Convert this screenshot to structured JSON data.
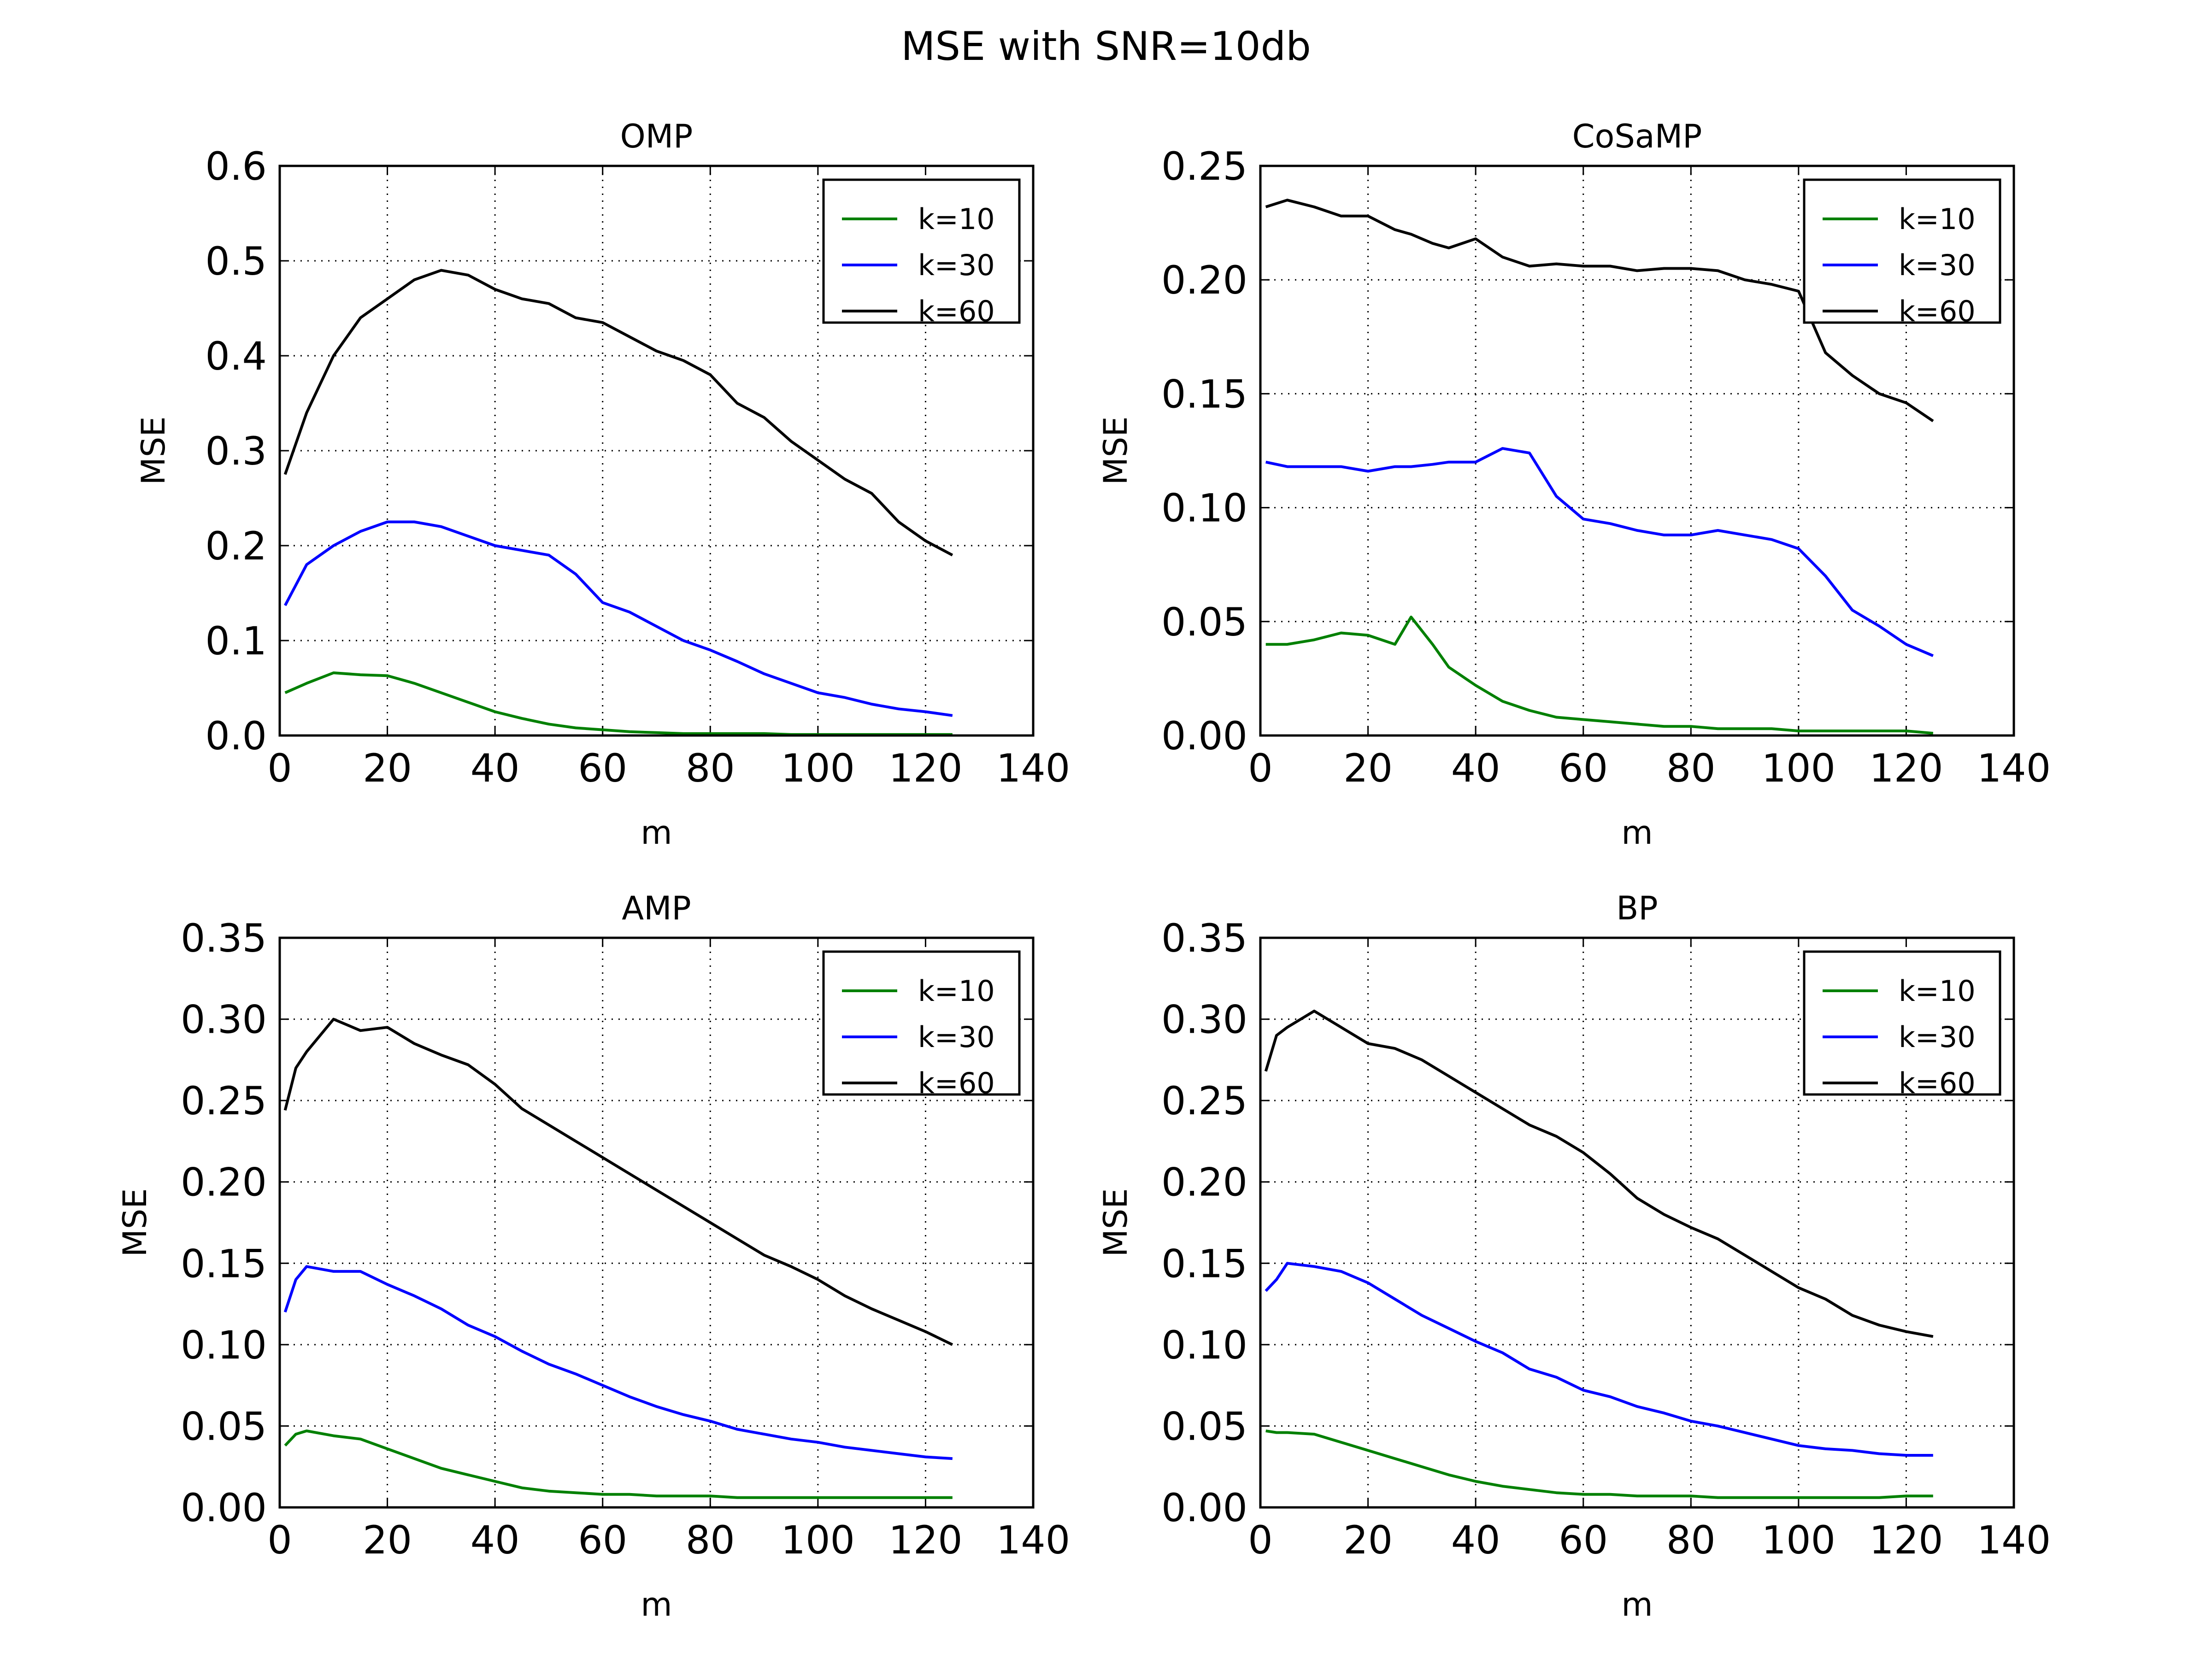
{
  "figure": {
    "title": "MSE with SNR=10db"
  },
  "colors": {
    "k=10": "#008000",
    "k=30": "#0000ff",
    "k=60": "#000000"
  },
  "chart_data": [
    {
      "type": "line",
      "title": "OMP",
      "xlabel": "m",
      "ylabel": "MSE",
      "xlim": [
        0,
        140
      ],
      "ylim": [
        0,
        0.6
      ],
      "xticks": [
        "0",
        "20",
        "40",
        "60",
        "80",
        "100",
        "120",
        "140"
      ],
      "yticks": [
        "0.0",
        "0.1",
        "0.2",
        "0.3",
        "0.4",
        "0.5",
        "0.6"
      ],
      "grid": true,
      "legend_position": "top-right",
      "x": [
        1,
        5,
        10,
        15,
        20,
        25,
        30,
        35,
        40,
        45,
        50,
        55,
        60,
        65,
        70,
        75,
        80,
        85,
        90,
        95,
        100,
        105,
        110,
        115,
        120,
        125
      ],
      "series": [
        {
          "name": "k=10",
          "color": "#008000",
          "values": [
            0.045,
            0.055,
            0.066,
            0.064,
            0.063,
            0.055,
            0.045,
            0.035,
            0.025,
            0.018,
            0.012,
            0.008,
            0.006,
            0.004,
            0.003,
            0.002,
            0.002,
            0.002,
            0.002,
            0.001,
            0.001,
            0.001,
            0.001,
            0.001,
            0.001,
            0.001
          ]
        },
        {
          "name": "k=30",
          "color": "#0000ff",
          "values": [
            0.137,
            0.18,
            0.2,
            0.215,
            0.225,
            0.225,
            0.22,
            0.21,
            0.2,
            0.195,
            0.19,
            0.17,
            0.14,
            0.13,
            0.115,
            0.1,
            0.09,
            0.078,
            0.065,
            0.055,
            0.045,
            0.04,
            0.033,
            0.028,
            0.025,
            0.021
          ]
        },
        {
          "name": "k=60",
          "color": "#000000",
          "values": [
            0.275,
            0.34,
            0.4,
            0.44,
            0.46,
            0.48,
            0.49,
            0.485,
            0.47,
            0.46,
            0.455,
            0.44,
            0.435,
            0.42,
            0.405,
            0.395,
            0.38,
            0.35,
            0.335,
            0.31,
            0.29,
            0.27,
            0.255,
            0.225,
            0.205,
            0.19
          ]
        }
      ]
    },
    {
      "type": "line",
      "title": "CoSaMP",
      "xlabel": "m",
      "ylabel": "MSE",
      "xlim": [
        0,
        140
      ],
      "ylim": [
        0,
        0.25
      ],
      "xticks": [
        "0",
        "20",
        "40",
        "60",
        "80",
        "100",
        "120",
        "140"
      ],
      "yticks": [
        "0.00",
        "0.05",
        "0.10",
        "0.15",
        "0.20",
        "0.25"
      ],
      "grid": true,
      "legend_position": "top-right",
      "x": [
        1,
        5,
        10,
        15,
        20,
        25,
        28,
        32,
        35,
        40,
        45,
        50,
        55,
        60,
        65,
        70,
        75,
        80,
        85,
        90,
        95,
        100,
        105,
        110,
        115,
        120,
        125
      ],
      "series": [
        {
          "name": "k=10",
          "color": "#008000",
          "values": [
            0.04,
            0.04,
            0.042,
            0.045,
            0.044,
            0.04,
            0.052,
            0.04,
            0.03,
            0.022,
            0.015,
            0.011,
            0.008,
            0.007,
            0.006,
            0.005,
            0.004,
            0.004,
            0.003,
            0.003,
            0.003,
            0.002,
            0.002,
            0.002,
            0.002,
            0.002,
            0.001
          ]
        },
        {
          "name": "k=30",
          "color": "#0000ff",
          "values": [
            0.12,
            0.118,
            0.118,
            0.118,
            0.116,
            0.118,
            0.118,
            0.119,
            0.12,
            0.12,
            0.126,
            0.124,
            0.105,
            0.095,
            0.093,
            0.09,
            0.088,
            0.088,
            0.09,
            0.088,
            0.086,
            0.082,
            0.07,
            0.055,
            0.048,
            0.04,
            0.035
          ]
        },
        {
          "name": "k=60",
          "color": "#000000",
          "values": [
            0.232,
            0.235,
            0.232,
            0.228,
            0.228,
            0.222,
            0.22,
            0.216,
            0.214,
            0.218,
            0.21,
            0.206,
            0.207,
            0.206,
            0.206,
            0.204,
            0.205,
            0.205,
            0.204,
            0.2,
            0.198,
            0.195,
            0.168,
            0.158,
            0.15,
            0.146,
            0.138
          ]
        }
      ]
    },
    {
      "type": "line",
      "title": "AMP",
      "xlabel": "m",
      "ylabel": "MSE",
      "xlim": [
        0,
        140
      ],
      "ylim": [
        0,
        0.35
      ],
      "xticks": [
        "0",
        "20",
        "40",
        "60",
        "80",
        "100",
        "120",
        "140"
      ],
      "yticks": [
        "0.00",
        "0.05",
        "0.10",
        "0.15",
        "0.20",
        "0.25",
        "0.30",
        "0.35"
      ],
      "grid": true,
      "legend_position": "top-right",
      "x": [
        1,
        3,
        5,
        10,
        15,
        20,
        25,
        30,
        35,
        40,
        45,
        50,
        55,
        60,
        65,
        70,
        75,
        80,
        85,
        90,
        95,
        100,
        105,
        110,
        115,
        120,
        125
      ],
      "series": [
        {
          "name": "k=10",
          "color": "#008000",
          "values": [
            0.038,
            0.045,
            0.047,
            0.044,
            0.042,
            0.036,
            0.03,
            0.024,
            0.02,
            0.016,
            0.012,
            0.01,
            0.009,
            0.008,
            0.008,
            0.007,
            0.007,
            0.007,
            0.006,
            0.006,
            0.006,
            0.006,
            0.006,
            0.006,
            0.006,
            0.006,
            0.006
          ]
        },
        {
          "name": "k=30",
          "color": "#0000ff",
          "values": [
            0.12,
            0.14,
            0.148,
            0.145,
            0.145,
            0.137,
            0.13,
            0.122,
            0.112,
            0.105,
            0.096,
            0.088,
            0.082,
            0.075,
            0.068,
            0.062,
            0.057,
            0.053,
            0.048,
            0.045,
            0.042,
            0.04,
            0.037,
            0.035,
            0.033,
            0.031,
            0.03
          ]
        },
        {
          "name": "k=60",
          "color": "#000000",
          "values": [
            0.244,
            0.27,
            0.28,
            0.3,
            0.293,
            0.295,
            0.285,
            0.278,
            0.272,
            0.26,
            0.245,
            0.235,
            0.225,
            0.215,
            0.205,
            0.195,
            0.185,
            0.175,
            0.165,
            0.155,
            0.148,
            0.14,
            0.13,
            0.122,
            0.115,
            0.108,
            0.1
          ]
        }
      ]
    },
    {
      "type": "line",
      "title": "BP",
      "xlabel": "m",
      "ylabel": "MSE",
      "xlim": [
        0,
        140
      ],
      "ylim": [
        0,
        0.35
      ],
      "xticks": [
        "0",
        "20",
        "40",
        "60",
        "80",
        "100",
        "120",
        "140"
      ],
      "yticks": [
        "0.00",
        "0.05",
        "0.10",
        "0.15",
        "0.20",
        "0.25",
        "0.30",
        "0.35"
      ],
      "grid": true,
      "legend_position": "top-right",
      "x": [
        1,
        3,
        5,
        10,
        15,
        20,
        25,
        30,
        35,
        40,
        45,
        50,
        55,
        60,
        65,
        70,
        75,
        80,
        85,
        90,
        95,
        100,
        105,
        110,
        115,
        120,
        125
      ],
      "series": [
        {
          "name": "k=10",
          "color": "#008000",
          "values": [
            0.047,
            0.046,
            0.046,
            0.045,
            0.04,
            0.035,
            0.03,
            0.025,
            0.02,
            0.016,
            0.013,
            0.011,
            0.009,
            0.008,
            0.008,
            0.007,
            0.007,
            0.007,
            0.006,
            0.006,
            0.006,
            0.006,
            0.006,
            0.006,
            0.006,
            0.007,
            0.007
          ]
        },
        {
          "name": "k=30",
          "color": "#0000ff",
          "values": [
            0.133,
            0.14,
            0.15,
            0.148,
            0.145,
            0.138,
            0.128,
            0.118,
            0.11,
            0.102,
            0.095,
            0.085,
            0.08,
            0.072,
            0.068,
            0.062,
            0.058,
            0.053,
            0.05,
            0.046,
            0.042,
            0.038,
            0.036,
            0.035,
            0.033,
            0.032,
            0.032
          ]
        },
        {
          "name": "k=60",
          "color": "#000000",
          "values": [
            0.268,
            0.29,
            0.295,
            0.305,
            0.295,
            0.285,
            0.282,
            0.275,
            0.265,
            0.255,
            0.245,
            0.235,
            0.228,
            0.218,
            0.205,
            0.19,
            0.18,
            0.172,
            0.165,
            0.155,
            0.145,
            0.135,
            0.128,
            0.118,
            0.112,
            0.108,
            0.105
          ]
        }
      ]
    }
  ]
}
